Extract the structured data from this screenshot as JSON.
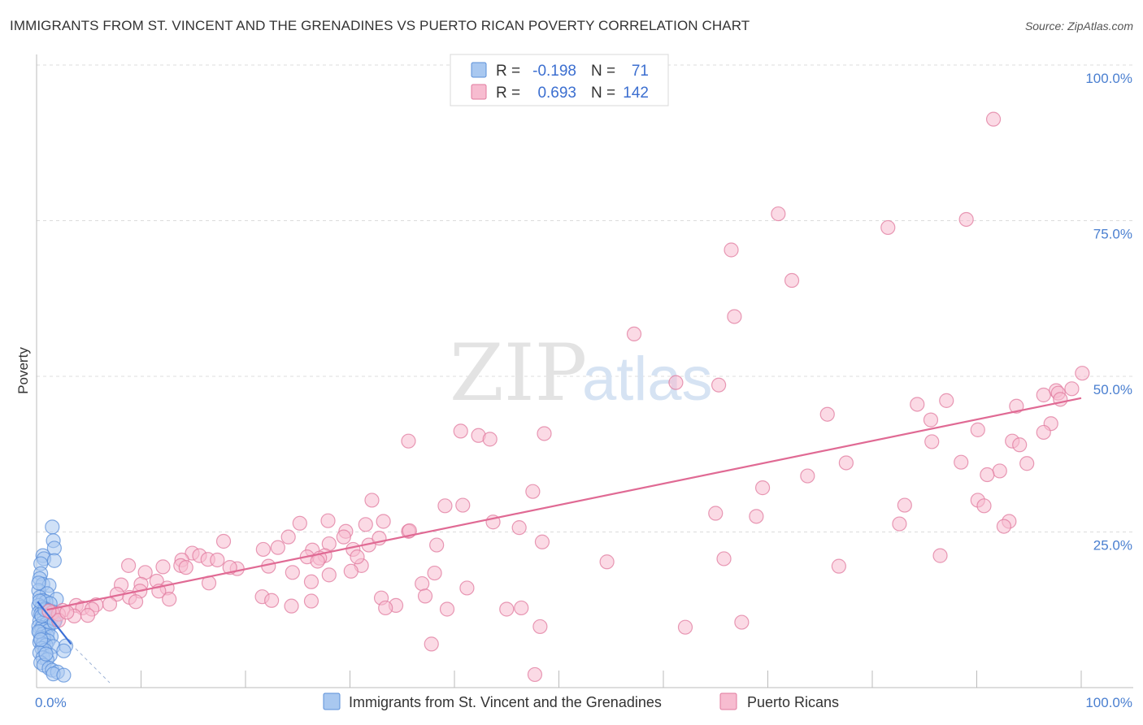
{
  "header": {
    "title": "IMMIGRANTS FROM ST. VINCENT AND THE GRENADINES VS PUERTO RICAN POVERTY CORRELATION CHART",
    "source": "Source: ZipAtlas.com"
  },
  "watermark": {
    "zip": "ZIP",
    "atlas": "atlas"
  },
  "legend": {
    "rows": [
      {
        "r_label": "R =",
        "r_value": "-0.198",
        "n_label": "N =",
        "n_value": "71",
        "color": "#a9c8f0",
        "stroke": "#5b8fd9"
      },
      {
        "r_label": "R =",
        "r_value": "0.693",
        "n_label": "N =",
        "n_value": "142",
        "color": "#f7bcd0",
        "stroke": "#e07a9e"
      }
    ]
  },
  "bottom_legend": [
    {
      "label": "Immigrants from St. Vincent and the Grenadines",
      "color": "#a9c8f0",
      "stroke": "#5b8fd9"
    },
    {
      "label": "Puerto Ricans",
      "color": "#f7bcd0",
      "stroke": "#e07a9e"
    }
  ],
  "chart_data": {
    "type": "scatter",
    "title": "IMMIGRANTS FROM ST. VINCENT AND THE GRENADINES VS PUERTO RICAN POVERTY CORRELATION CHART",
    "xlabel": "",
    "ylabel": "Poverty",
    "xlim": [
      0,
      100
    ],
    "ylim": [
      0,
      100
    ],
    "x_tick_labels": [
      "0.0%",
      "100.0%"
    ],
    "y_ticks": [
      {
        "value": 25,
        "label": "25.0%"
      },
      {
        "value": 50,
        "label": "50.0%"
      },
      {
        "value": 75,
        "label": "75.0%"
      },
      {
        "value": 100,
        "label": "100.0%"
      }
    ],
    "grid": true,
    "legend_position": "top-center",
    "series": [
      {
        "name": "Immigrants from St. Vincent and the Grenadines",
        "color": "#a9c8f0",
        "stroke": "#5b8fd9",
        "trend": {
          "x": [
            0.1,
            3.3
          ],
          "y": [
            13.8,
            7.0
          ],
          "color": "#3a6fd6",
          "dash_extension": {
            "x": [
              3.3,
              7.0
            ],
            "y": [
              7.0,
              -1.5
            ]
          }
        },
        "points": [
          [
            1.5,
            25.8
          ],
          [
            1.6,
            23.6
          ],
          [
            1.7,
            22.4
          ],
          [
            0.6,
            21.2
          ],
          [
            0.7,
            20.7
          ],
          [
            1.7,
            20.4
          ],
          [
            0.4,
            19.9
          ],
          [
            0.4,
            18.3
          ],
          [
            0.3,
            17.5
          ],
          [
            0.6,
            16.6
          ],
          [
            1.2,
            16.4
          ],
          [
            0.2,
            15.6
          ],
          [
            1.0,
            15.1
          ],
          [
            1.9,
            14.2
          ],
          [
            0.3,
            14.5
          ],
          [
            0.6,
            14.0
          ],
          [
            0.9,
            13.8
          ],
          [
            1.3,
            13.5
          ],
          [
            0.2,
            13.2
          ],
          [
            0.5,
            12.9
          ],
          [
            0.8,
            12.7
          ],
          [
            1.1,
            12.4
          ],
          [
            1.5,
            12.2
          ],
          [
            0.2,
            12.0
          ],
          [
            0.4,
            11.8
          ],
          [
            0.7,
            11.6
          ],
          [
            1.0,
            11.3
          ],
          [
            1.4,
            11.1
          ],
          [
            1.8,
            10.9
          ],
          [
            0.3,
            10.7
          ],
          [
            0.6,
            10.4
          ],
          [
            0.9,
            10.2
          ],
          [
            1.2,
            10.0
          ],
          [
            0.2,
            9.8
          ],
          [
            0.5,
            9.6
          ],
          [
            0.8,
            9.3
          ],
          [
            1.1,
            9.1
          ],
          [
            0.3,
            8.9
          ],
          [
            0.6,
            8.6
          ],
          [
            1.0,
            8.4
          ],
          [
            1.4,
            8.2
          ],
          [
            0.4,
            8.0
          ],
          [
            0.7,
            7.8
          ],
          [
            1.1,
            7.5
          ],
          [
            0.3,
            7.3
          ],
          [
            0.6,
            7.0
          ],
          [
            0.9,
            6.8
          ],
          [
            1.6,
            6.6
          ],
          [
            2.8,
            6.7
          ],
          [
            0.5,
            6.3
          ],
          [
            0.8,
            6.0
          ],
          [
            2.6,
            5.9
          ],
          [
            0.3,
            5.6
          ],
          [
            1.3,
            5.2
          ],
          [
            0.6,
            4.8
          ],
          [
            1.0,
            4.5
          ],
          [
            0.4,
            4.0
          ],
          [
            0.7,
            3.6
          ],
          [
            1.2,
            3.1
          ],
          [
            1.5,
            2.8
          ],
          [
            2.0,
            2.5
          ],
          [
            1.6,
            2.2
          ],
          [
            2.6,
            2.0
          ],
          [
            0.2,
            9.0
          ],
          [
            0.5,
            11.5
          ],
          [
            0.8,
            12.5
          ],
          [
            0.3,
            13.9
          ],
          [
            0.4,
            7.7
          ],
          [
            1.7,
            10.5
          ],
          [
            0.2,
            16.8
          ],
          [
            0.9,
            5.4
          ]
        ]
      },
      {
        "name": "Puerto Ricans",
        "color": "#f7bcd0",
        "stroke": "#e07a9e",
        "trend": {
          "x": [
            1.0,
            100.0
          ],
          "y": [
            12.5,
            46.5
          ],
          "color": "#e06a94"
        },
        "points": [
          [
            91.6,
            91.3
          ],
          [
            71.0,
            76.1
          ],
          [
            89.0,
            75.2
          ],
          [
            81.5,
            73.9
          ],
          [
            66.5,
            70.3
          ],
          [
            72.3,
            65.4
          ],
          [
            66.8,
            59.6
          ],
          [
            57.2,
            56.8
          ],
          [
            100.1,
            50.5
          ],
          [
            61.2,
            49.0
          ],
          [
            65.3,
            48.6
          ],
          [
            99.1,
            48.0
          ],
          [
            97.6,
            47.7
          ],
          [
            97.8,
            47.3
          ],
          [
            96.4,
            47.0
          ],
          [
            98.0,
            46.3
          ],
          [
            87.1,
            46.1
          ],
          [
            84.3,
            45.5
          ],
          [
            93.8,
            45.2
          ],
          [
            75.7,
            43.9
          ],
          [
            85.6,
            43.0
          ],
          [
            97.1,
            42.4
          ],
          [
            40.6,
            41.2
          ],
          [
            96.4,
            41.0
          ],
          [
            48.6,
            40.8
          ],
          [
            90.1,
            41.4
          ],
          [
            42.3,
            40.5
          ],
          [
            43.4,
            39.9
          ],
          [
            35.6,
            39.6
          ],
          [
            93.4,
            39.6
          ],
          [
            94.1,
            39.0
          ],
          [
            85.7,
            39.5
          ],
          [
            77.5,
            36.1
          ],
          [
            88.5,
            36.2
          ],
          [
            94.8,
            36.0
          ],
          [
            92.2,
            34.8
          ],
          [
            91.0,
            34.2
          ],
          [
            73.8,
            34.0
          ],
          [
            69.5,
            32.1
          ],
          [
            47.5,
            31.5
          ],
          [
            32.1,
            30.1
          ],
          [
            90.1,
            30.1
          ],
          [
            39.1,
            29.2
          ],
          [
            40.8,
            29.3
          ],
          [
            83.1,
            29.3
          ],
          [
            90.7,
            29.2
          ],
          [
            65.0,
            28.0
          ],
          [
            68.9,
            27.5
          ],
          [
            27.9,
            26.8
          ],
          [
            43.7,
            26.6
          ],
          [
            93.1,
            26.7
          ],
          [
            33.2,
            26.7
          ],
          [
            25.2,
            26.4
          ],
          [
            31.5,
            26.2
          ],
          [
            82.6,
            26.3
          ],
          [
            92.6,
            25.9
          ],
          [
            46.2,
            25.7
          ],
          [
            35.6,
            25.1
          ],
          [
            29.6,
            25.1
          ],
          [
            24.1,
            24.2
          ],
          [
            29.4,
            24.2
          ],
          [
            17.9,
            23.5
          ],
          [
            48.4,
            23.4
          ],
          [
            28.0,
            23.1
          ],
          [
            31.8,
            22.9
          ],
          [
            23.1,
            22.5
          ],
          [
            21.7,
            22.2
          ],
          [
            26.4,
            22.1
          ],
          [
            38.3,
            22.9
          ],
          [
            30.3,
            22.2
          ],
          [
            14.9,
            21.6
          ],
          [
            15.6,
            21.2
          ],
          [
            16.4,
            20.6
          ],
          [
            25.9,
            21.0
          ],
          [
            27.6,
            21.2
          ],
          [
            27.1,
            20.8
          ],
          [
            13.9,
            20.5
          ],
          [
            17.3,
            20.5
          ],
          [
            26.9,
            20.3
          ],
          [
            54.6,
            20.2
          ],
          [
            8.8,
            19.6
          ],
          [
            12.1,
            19.4
          ],
          [
            13.8,
            19.6
          ],
          [
            19.2,
            19.1
          ],
          [
            14.3,
            19.3
          ],
          [
            18.5,
            19.3
          ],
          [
            22.2,
            19.5
          ],
          [
            31.1,
            19.6
          ],
          [
            65.8,
            20.7
          ],
          [
            10.4,
            18.5
          ],
          [
            28.0,
            18.1
          ],
          [
            24.5,
            18.5
          ],
          [
            30.1,
            18.7
          ],
          [
            86.5,
            21.2
          ],
          [
            76.8,
            19.5
          ],
          [
            38.1,
            18.4
          ],
          [
            8.1,
            16.5
          ],
          [
            10.0,
            16.6
          ],
          [
            11.5,
            17.1
          ],
          [
            26.3,
            17.0
          ],
          [
            36.9,
            16.7
          ],
          [
            16.5,
            16.8
          ],
          [
            12.5,
            16.0
          ],
          [
            9.9,
            15.5
          ],
          [
            11.7,
            15.5
          ],
          [
            41.2,
            16.0
          ],
          [
            7.7,
            15.0
          ],
          [
            8.9,
            14.5
          ],
          [
            12.7,
            14.2
          ],
          [
            21.6,
            14.6
          ],
          [
            33.0,
            14.4
          ],
          [
            37.2,
            14.7
          ],
          [
            22.5,
            14.0
          ],
          [
            9.5,
            13.8
          ],
          [
            7.0,
            13.4
          ],
          [
            5.7,
            13.3
          ],
          [
            3.8,
            13.2
          ],
          [
            4.4,
            12.8
          ],
          [
            5.3,
            12.6
          ],
          [
            24.4,
            13.1
          ],
          [
            34.4,
            13.2
          ],
          [
            45.0,
            12.6
          ],
          [
            2.5,
            12.4
          ],
          [
            1.5,
            12.0
          ],
          [
            2.1,
            11.8
          ],
          [
            3.6,
            11.5
          ],
          [
            4.9,
            11.6
          ],
          [
            2.1,
            10.8
          ],
          [
            26.3,
            13.9
          ],
          [
            39.3,
            12.6
          ],
          [
            46.4,
            12.8
          ],
          [
            67.5,
            10.5
          ],
          [
            48.2,
            9.8
          ],
          [
            62.1,
            9.7
          ],
          [
            37.8,
            7.0
          ],
          [
            47.7,
            2.1
          ],
          [
            1.2,
            12.3
          ],
          [
            2.9,
            12.1
          ],
          [
            33.4,
            12.8
          ],
          [
            35.7,
            25.2
          ],
          [
            32.8,
            24.0
          ],
          [
            30.7,
            21.0
          ]
        ]
      }
    ]
  }
}
